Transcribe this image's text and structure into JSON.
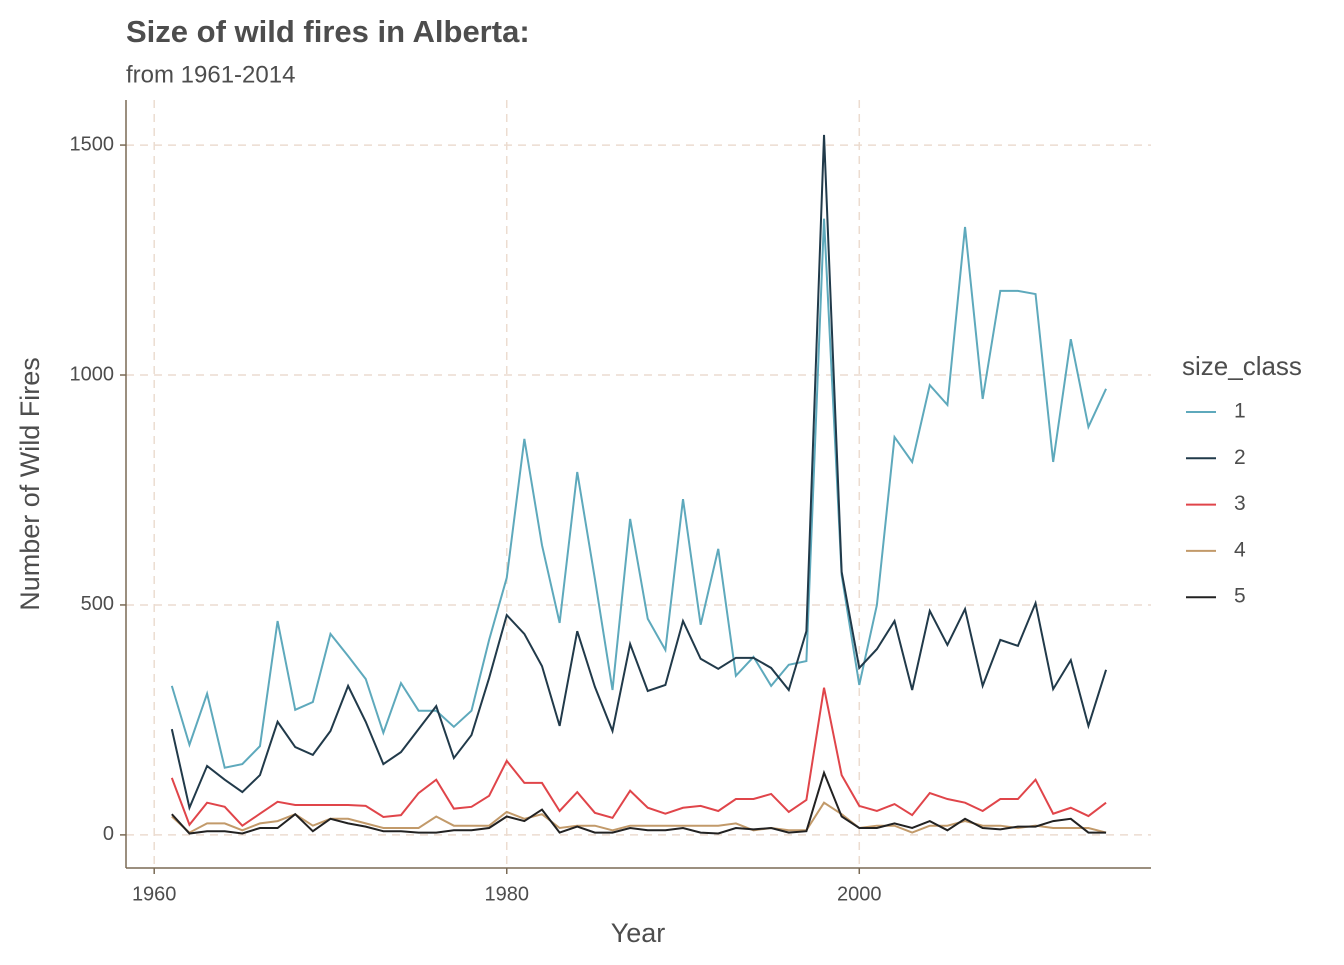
{
  "chart_data": {
    "type": "line",
    "title": "Size of wild fires in Alberta:",
    "subtitle": "from 1961-2014",
    "x_label": "Year",
    "y_label": "Number of Wild Fires",
    "legend_title": "size_class",
    "x": [
      1961,
      1962,
      1963,
      1964,
      1965,
      1966,
      1967,
      1968,
      1969,
      1970,
      1971,
      1972,
      1973,
      1974,
      1975,
      1976,
      1977,
      1978,
      1979,
      1980,
      1981,
      1982,
      1983,
      1984,
      1985,
      1986,
      1987,
      1988,
      1989,
      1990,
      1991,
      1992,
      1993,
      1994,
      1995,
      1996,
      1997,
      1998,
      1999,
      2000,
      2001,
      2002,
      2003,
      2004,
      2005,
      2006,
      2007,
      2008,
      2009,
      2010,
      2011,
      2012,
      2013,
      2014
    ],
    "series": [
      {
        "name": "1",
        "color": "#5ea9bc",
        "values": [
          324,
          196,
          307,
          146,
          154,
          193,
          465,
          272,
          289,
          437,
          389,
          339,
          222,
          330,
          270,
          270,
          235,
          270,
          424,
          559,
          861,
          630,
          461,
          789,
          557,
          315,
          687,
          470,
          402,
          730,
          457,
          622,
          346,
          387,
          324,
          370,
          378,
          1340,
          565,
          326,
          500,
          865,
          811,
          978,
          935,
          1322,
          948,
          1183,
          1183,
          1176,
          811,
          1078,
          887,
          970
        ]
      },
      {
        "name": "2",
        "color": "#213a4a",
        "values": [
          230,
          59,
          150,
          120,
          93,
          130,
          246,
          191,
          174,
          226,
          324,
          246,
          154,
          180,
          230,
          280,
          167,
          217,
          341,
          478,
          437,
          367,
          237,
          443,
          322,
          226,
          415,
          313,
          326,
          465,
          383,
          361,
          385,
          385,
          363,
          315,
          443,
          1522,
          572,
          363,
          404,
          465,
          315,
          487,
          413,
          491,
          324,
          424,
          411,
          504,
          317,
          380,
          237,
          359
        ]
      },
      {
        "name": "3",
        "color": "#e0454a",
        "values": [
          124,
          22,
          70,
          61,
          20,
          46,
          72,
          65,
          65,
          65,
          65,
          63,
          39,
          43,
          91,
          120,
          57,
          61,
          85,
          161,
          113,
          113,
          52,
          93,
          48,
          37,
          96,
          59,
          46,
          59,
          63,
          52,
          78,
          78,
          89,
          50,
          76,
          320,
          130,
          63,
          52,
          67,
          43,
          91,
          78,
          70,
          52,
          78,
          78,
          120,
          46,
          59,
          41,
          70
        ]
      },
      {
        "name": "4",
        "color": "#c29a6a",
        "values": [
          40,
          5,
          25,
          25,
          10,
          25,
          30,
          45,
          20,
          35,
          35,
          25,
          15,
          15,
          15,
          40,
          20,
          20,
          20,
          50,
          35,
          45,
          15,
          20,
          20,
          10,
          20,
          20,
          20,
          20,
          20,
          20,
          25,
          10,
          15,
          10,
          10,
          70,
          45,
          15,
          20,
          20,
          5,
          20,
          20,
          30,
          20,
          20,
          15,
          20,
          15,
          15,
          15,
          5
        ]
      },
      {
        "name": "5",
        "color": "#222222",
        "values": [
          45,
          3,
          8,
          8,
          3,
          15,
          15,
          45,
          8,
          35,
          25,
          18,
          8,
          8,
          5,
          5,
          10,
          10,
          15,
          40,
          30,
          55,
          5,
          18,
          5,
          5,
          15,
          10,
          10,
          15,
          5,
          3,
          15,
          12,
          15,
          5,
          8,
          135,
          40,
          15,
          15,
          25,
          15,
          30,
          10,
          35,
          15,
          12,
          18,
          18,
          30,
          35,
          5,
          5
        ]
      }
    ],
    "xlim": [
      1958.4,
      2016.55
    ],
    "ylim": [
      -72,
      1598
    ],
    "xticks": [
      1960,
      1980,
      2000
    ],
    "yticks": [
      0,
      500,
      1000,
      1500
    ],
    "grid": true
  }
}
